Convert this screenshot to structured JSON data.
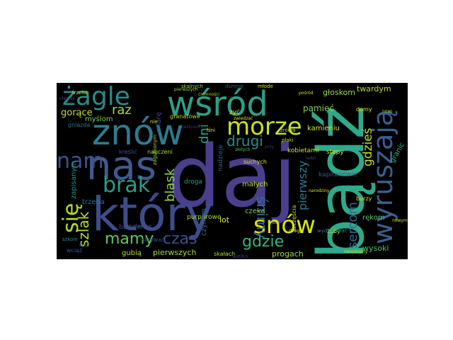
{
  "words": [
    {
      "t": "daj",
      "c": "#4a3f8c"
    },
    {
      "t": "bądź",
      "c": "#2ea98a"
    },
    {
      "t": "który",
      "c": "#3f4c8a"
    },
    {
      "t": "nas",
      "c": "#3f5a8d"
    },
    {
      "t": "znów",
      "c": "#2f7a8e"
    },
    {
      "t": "wśród",
      "c": "#2f9e87"
    },
    {
      "t": "wyruszają",
      "c": "#3a5f8f"
    },
    {
      "t": "żagle",
      "c": "#2a8a8c"
    },
    {
      "t": "morze",
      "c": "#c8e020"
    },
    {
      "t": "snów",
      "c": "#d8e219"
    },
    {
      "t": "się",
      "c": "#b0dc2c"
    },
    {
      "t": "nam",
      "c": "#3b528b"
    },
    {
      "t": "brak",
      "c": "#2e9a8a"
    },
    {
      "t": "czas",
      "c": "#3d4e8a"
    },
    {
      "t": "mamy",
      "c": "#5ec962"
    },
    {
      "t": "gdzie",
      "c": "#35b779"
    },
    {
      "t": "drugi",
      "c": "#21908d"
    },
    {
      "t": "śnimy",
      "c": "#2f6f8e"
    },
    {
      "t": "blask",
      "c": "#8fd744"
    },
    {
      "t": "pierwszy",
      "c": "#2a7b8e"
    },
    {
      "t": "gdzieś",
      "c": "#bddf26"
    },
    {
      "t": "sercom",
      "c": "#31688e"
    },
    {
      "t": "szlak",
      "c": "#b5de2b"
    },
    {
      "t": "raz",
      "c": "#a5db36"
    },
    {
      "t": "dni",
      "c": "#2f9e87"
    },
    {
      "t": "gorące",
      "c": "#c2df23"
    },
    {
      "t": "pamięć",
      "c": "#7ad151"
    },
    {
      "t": "głoskom",
      "c": "#9dd93b"
    },
    {
      "t": "twardym",
      "c": "#b8de29"
    },
    {
      "t": "kamieniu",
      "c": "#d2e21b"
    },
    {
      "t": "lot",
      "c": "#e5e419"
    },
    {
      "t": "małych",
      "c": "#bddf26"
    },
    {
      "t": "wysoki",
      "c": "#4ac16d"
    },
    {
      "t": "pierwszych",
      "c": "#a0da39"
    },
    {
      "t": "budujemy",
      "c": "#3b528b"
    },
    {
      "t": "myślom",
      "c": "#7ad151"
    },
    {
      "t": "trzeba",
      "c": "#2c738e"
    },
    {
      "t": "progach",
      "c": "#9fda3a"
    },
    {
      "t": "czeka",
      "c": "#73d056"
    },
    {
      "t": "rękom",
      "c": "#5ec962"
    },
    {
      "t": "zapisanym",
      "c": "#21918c"
    },
    {
      "t": "purpurowe",
      "c": "#addc30"
    },
    {
      "t": "droga",
      "c": "#20a386"
    },
    {
      "t": "granic",
      "c": "#2ab07f"
    },
    {
      "t": "gubią",
      "c": "#bade28"
    },
    {
      "t": "skałach",
      "c": "#a8db34"
    },
    {
      "t": "miarę",
      "c": "#3e4989"
    },
    {
      "t": "domy",
      "c": "#e1e418"
    },
    {
      "t": "kobietami",
      "c": "#cde11d"
    },
    {
      "t": "nadzieje",
      "c": "#35608d"
    },
    {
      "t": "czynom",
      "c": "#31688e"
    },
    {
      "t": "stepy",
      "c": "#e5e419"
    },
    {
      "t": "burzy",
      "c": "#d0e11c"
    },
    {
      "t": "żeby",
      "c": "#c5e021"
    },
    {
      "t": "skrywać",
      "c": "#3d4d8a"
    },
    {
      "t": "kapitanowie",
      "c": "#3b528b"
    },
    {
      "t": "wydzwaniać",
      "c": "#29798e"
    },
    {
      "t": "szczęścia",
      "c": "#c2df23"
    },
    {
      "t": "suchych",
      "c": "#e2e418"
    },
    {
      "t": "zyć",
      "c": "#d5e21a"
    },
    {
      "t": "lśni",
      "c": "#e7e419"
    },
    {
      "t": "granatowe",
      "c": "#b5de2b"
    },
    {
      "t": "nauczeni",
      "c": "#a8db34"
    },
    {
      "t": "kreślić",
      "c": "#3a538b"
    },
    {
      "t": "trzcich",
      "c": "#d2e21b"
    },
    {
      "t": "gniazda",
      "c": "#2a768e"
    },
    {
      "t": "wciąż",
      "c": "#38588c"
    },
    {
      "t": "szkole",
      "c": "#238a8d"
    },
    {
      "t": "snu",
      "c": "#2c728e"
    },
    {
      "t": "nie",
      "c": "#d8e219"
    },
    {
      "t": "drogi",
      "c": "#bddf26"
    },
    {
      "t": "dumnie",
      "c": "#3b528b"
    },
    {
      "t": "młode",
      "c": "#d2e21b"
    },
    {
      "t": "źródła",
      "c": "#b8de29"
    },
    {
      "t": "zwiedzamy",
      "c": "#c2df23"
    },
    {
      "t": "zagubionym",
      "c": "#9dd93b"
    },
    {
      "t": "wielka",
      "c": "#472f7d"
    },
    {
      "t": "pośród",
      "c": "#d2e21b"
    },
    {
      "t": "płaki",
      "c": "#bddf26"
    },
    {
      "t": "chronić",
      "c": "#3b528b"
    },
    {
      "t": "nowi",
      "c": "#d5e21a"
    },
    {
      "t": "zwiedzać",
      "c": "#e2e418"
    },
    {
      "t": "pierwszych",
      "c": "#9fda3a"
    },
    {
      "t": "skalnych",
      "c": "#8bd646"
    },
    {
      "t": "ciemności",
      "c": "#b5de2b"
    },
    {
      "t": "narodziny",
      "c": "#d8e219"
    },
    {
      "t": "gradowe",
      "c": "#3e4989"
    },
    {
      "t": "przy",
      "c": "#472f7d"
    },
    {
      "t": "złotych",
      "c": "#5ec962"
    },
    {
      "t": "bezkresny",
      "c": "#472f7d"
    },
    {
      "t": "ludzi",
      "c": "#3e4989"
    },
    {
      "t": "nowym",
      "c": "#d8e219"
    }
  ]
}
